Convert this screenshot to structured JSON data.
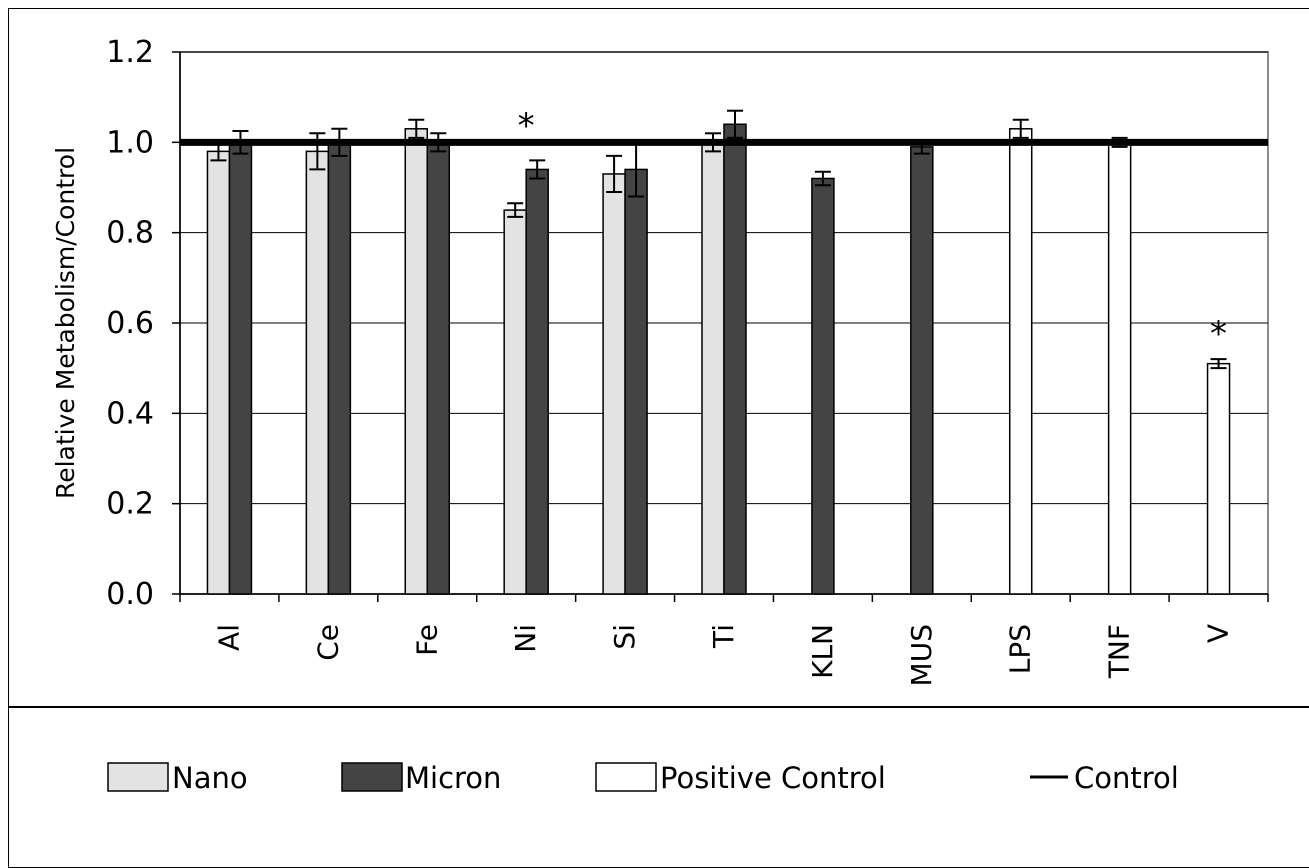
{
  "chart_data": {
    "type": "bar",
    "ylabel": "Relative Metabolism/Control",
    "xlabel": "",
    "ylim": [
      0,
      1.2
    ],
    "yticks": [
      "0.0",
      "0.2",
      "0.4",
      "0.6",
      "0.8",
      "1.0",
      "1.2"
    ],
    "grid": "horizontal",
    "categories": [
      "Al",
      "Ce",
      "Fe",
      "Ni",
      "Si",
      "Ti",
      "KLN",
      "MUS",
      "LPS",
      "TNF",
      "V"
    ],
    "series": [
      {
        "name": "Nano",
        "color": "#e3e3e3",
        "values": [
          0.98,
          0.98,
          1.03,
          0.85,
          0.93,
          1.0,
          null,
          null,
          null,
          null,
          null
        ],
        "errors": [
          0.02,
          0.04,
          0.02,
          0.015,
          0.04,
          0.02,
          null,
          null,
          null,
          null,
          null
        ]
      },
      {
        "name": "Micron",
        "color": "#444444",
        "values": [
          1.0,
          1.0,
          1.0,
          0.94,
          0.94,
          1.04,
          0.92,
          0.99,
          null,
          null,
          null
        ],
        "errors": [
          0.025,
          0.03,
          0.02,
          0.02,
          0.06,
          0.03,
          0.015,
          0.015,
          null,
          null,
          null
        ]
      },
      {
        "name": "Positive Control",
        "color": "#ffffff",
        "values": [
          null,
          null,
          null,
          null,
          null,
          null,
          null,
          null,
          1.03,
          1.0,
          0.51
        ],
        "errors": [
          null,
          null,
          null,
          null,
          null,
          null,
          null,
          null,
          0.02,
          0.01,
          0.01
        ]
      }
    ],
    "control_line": {
      "name": "Control",
      "value": 1.0,
      "color": "#000000"
    },
    "annotations": [
      {
        "text": "*",
        "category": "Ni",
        "y": 1.06
      },
      {
        "text": "*",
        "category": "V",
        "y": 0.6
      }
    ],
    "legend": {
      "position": "bottom",
      "entries": [
        "Nano",
        "Micron",
        "Positive Control",
        "Control"
      ]
    }
  }
}
